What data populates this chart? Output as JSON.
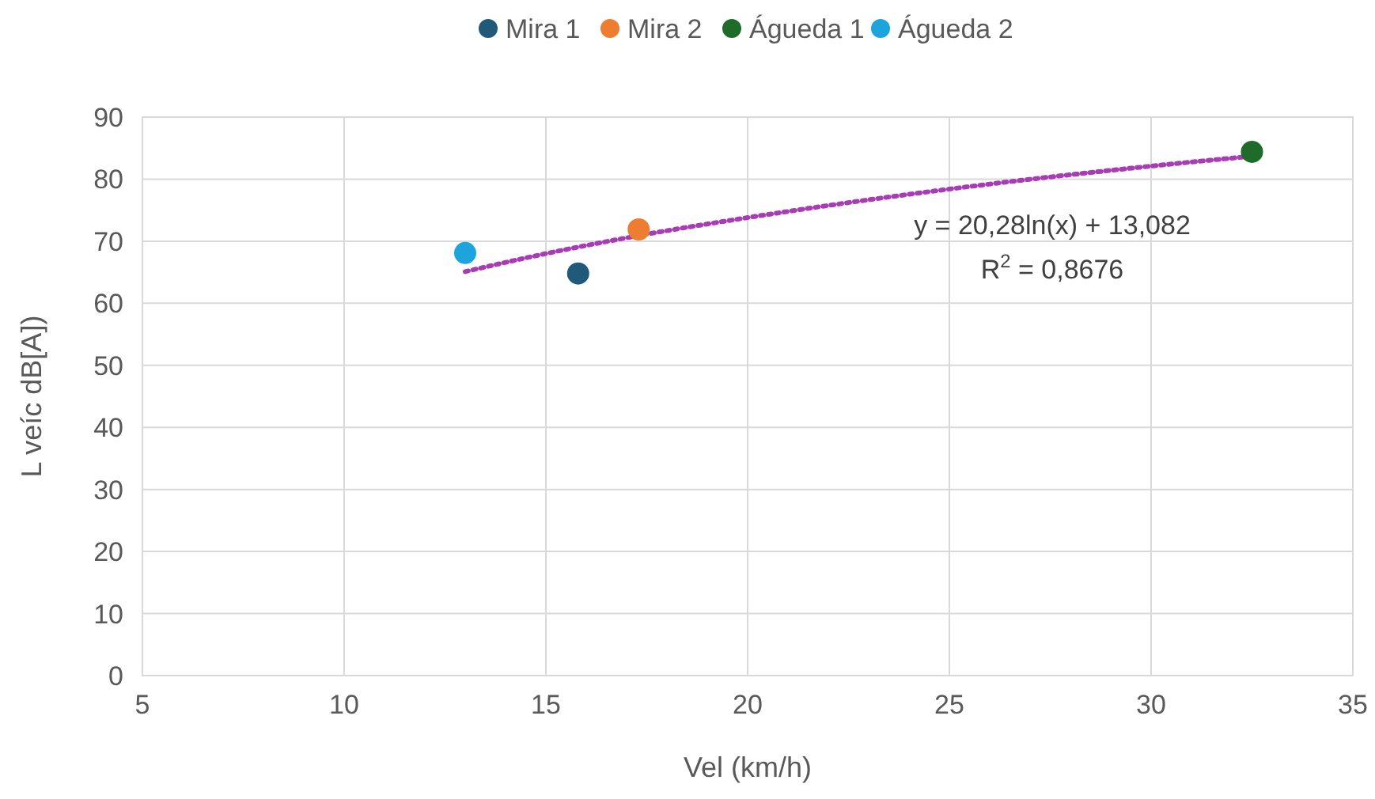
{
  "chart_data": {
    "type": "scatter",
    "xlabel": "Vel (km/h)",
    "ylabel": "L veíc dB[A])",
    "xlim": [
      5,
      35
    ],
    "xticks": [
      5,
      10,
      15,
      20,
      25,
      30,
      35
    ],
    "ylim": [
      0,
      90
    ],
    "yticks": [
      0,
      10,
      20,
      30,
      40,
      50,
      60,
      70,
      80,
      90
    ],
    "grid": true,
    "legend": "top",
    "marker": "circle",
    "series": [
      {
        "name": "Mira 1",
        "color": "#1f5a7a",
        "x": [
          15.8
        ],
        "values": [
          64.8
        ]
      },
      {
        "name": "Mira 2",
        "color": "#ed7d31",
        "x": [
          17.3
        ],
        "values": [
          71.9
        ]
      },
      {
        "name": "Águeda 1",
        "color": "#1e6b2a",
        "x": [
          32.5
        ],
        "values": [
          84.4
        ]
      },
      {
        "name": "Águeda 2",
        "color": "#1ea4dc",
        "x": [
          13.0
        ],
        "values": [
          68.1
        ]
      },
      {
        "type": "line",
        "color": "#a83cb4",
        "line_style": "dotted",
        "marker": "none",
        "x": [
          13,
          15,
          17.3,
          20,
          25,
          30,
          32.5
        ],
        "values": [
          65.1,
          68.0,
          70.9,
          73.8,
          78.4,
          82.1,
          83.7
        ]
      }
    ],
    "annotations": [
      "y = 20,28ln(x) + 13,082",
      "R$^{2}$ = 0,8676"
    ]
  }
}
